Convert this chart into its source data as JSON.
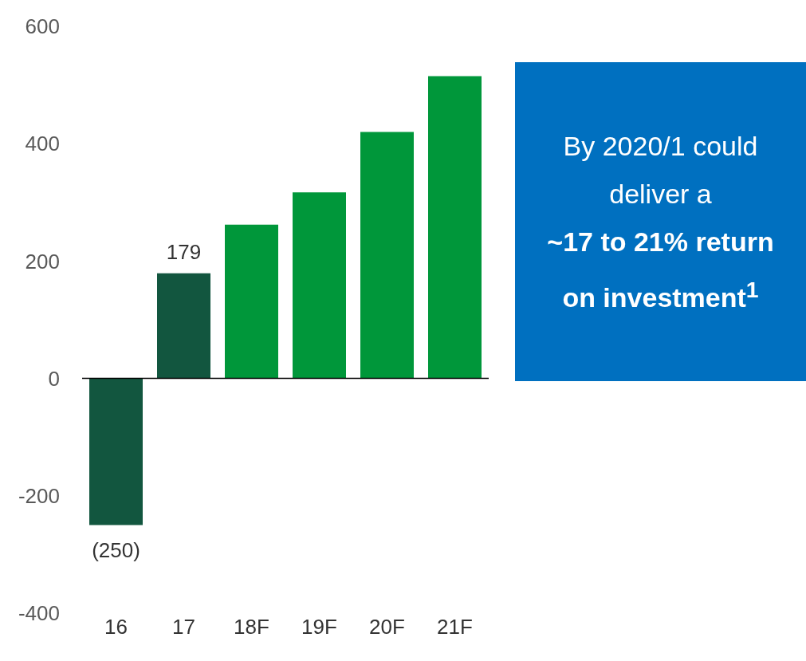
{
  "chart_data": {
    "type": "bar",
    "categories": [
      "16",
      "17",
      "18F",
      "19F",
      "20F",
      "21F"
    ],
    "values": [
      -250,
      179,
      262,
      317,
      420,
      515
    ],
    "colors": [
      "#12563f",
      "#12563f",
      "#00973a",
      "#00973a",
      "#00973a",
      "#00973a"
    ],
    "value_labels": [
      "(250)",
      "179",
      null,
      null,
      null,
      null
    ],
    "ylim": [
      -400,
      600
    ],
    "yticks": [
      -400,
      -200,
      0,
      200,
      400,
      600
    ],
    "legend": false,
    "annotations": [
      "By 2020/1 could deliver a",
      "~17 to 21% return on investment$^{1}$"
    ]
  }
}
